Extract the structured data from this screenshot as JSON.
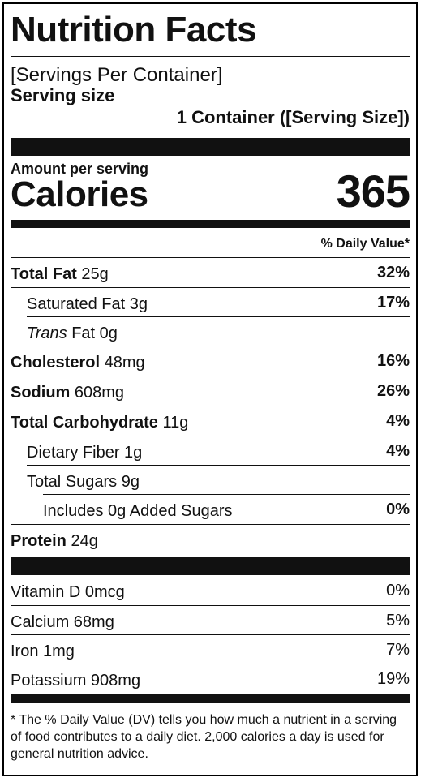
{
  "label": {
    "title": "Nutrition Facts",
    "servings_per_container": "[Servings Per Container]",
    "serving_size_label": "Serving size",
    "serving_size_value": "1 Container ([Serving Size])",
    "amount_per_serving": "Amount per serving",
    "calories_label": "Calories",
    "calories_value": "365",
    "daily_value_header": "% Daily Value*"
  },
  "nutrients": {
    "total_fat": {
      "name": "Total Fat",
      "amount": "25g",
      "dv": "32%"
    },
    "saturated_fat": {
      "name": "Saturated Fat 3g",
      "dv": "17%"
    },
    "trans_fat": {
      "name_italic": "Trans",
      "name_rest": "Fat 0g"
    },
    "cholesterol": {
      "name": "Cholesterol",
      "amount": "48mg",
      "dv": "16%"
    },
    "sodium": {
      "name": "Sodium",
      "amount": "608mg",
      "dv": "26%"
    },
    "total_carbohydrate": {
      "name": "Total Carbohydrate",
      "amount": "11g",
      "dv": "4%"
    },
    "dietary_fiber": {
      "name": "Dietary Fiber 1g",
      "dv": "4%"
    },
    "total_sugars": {
      "name": "Total Sugars 9g"
    },
    "added_sugars": {
      "name": "Includes 0g Added Sugars",
      "dv": "0%"
    },
    "protein": {
      "name": "Protein",
      "amount": "24g"
    }
  },
  "vitamins": {
    "vitamin_d": {
      "name": "Vitamin D 0mcg",
      "dv": "0%"
    },
    "calcium": {
      "name": "Calcium 68mg",
      "dv": "5%"
    },
    "iron": {
      "name": "Iron 1mg",
      "dv": "7%"
    },
    "potassium": {
      "name": "Potassium 908mg",
      "dv": "19%"
    }
  },
  "footnote": "* The % Daily Value (DV) tells you how much a nutrient in a serving of food contributes to a daily diet. 2,000 calories a day is used for general nutrition advice."
}
